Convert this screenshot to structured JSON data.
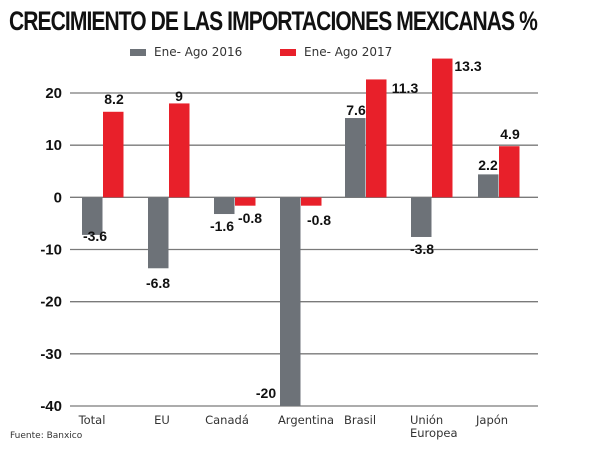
{
  "chart_data": {
    "type": "bar",
    "title": "CRECIMIENTO DE LAS IMPORTACIONES MEXICANAS %",
    "xlabel": "",
    "ylabel": "",
    "ylim": [
      -40,
      20
    ],
    "yticks": [
      20,
      10,
      0,
      -10,
      -20,
      -30,
      -40
    ],
    "grid": true,
    "legend_position": "top",
    "categories": [
      "Total",
      "EU",
      "Canadá",
      "Argentina",
      "Brasil",
      "Unión Europea",
      "Japón"
    ],
    "category_lines": [
      [
        "Total"
      ],
      [
        "EU"
      ],
      [
        "Canadá"
      ],
      [
        "Argentina"
      ],
      [
        "Brasil"
      ],
      [
        "Unión",
        "Europea"
      ],
      [
        "Japón"
      ]
    ],
    "series": [
      {
        "name": "Ene- Ago 2016",
        "color": "#6d7278",
        "values": [
          -3.6,
          -6.8,
          -1.6,
          -20,
          7.6,
          -3.8,
          2.2
        ]
      },
      {
        "name": "Ene- Ago 2017",
        "color": "#e8202a",
        "values": [
          8.2,
          9,
          -0.8,
          -0.8,
          11.3,
          13.3,
          4.9
        ]
      }
    ],
    "visual_scale_note": "bars drawn at twice labeled values relative to axis"
  },
  "source": "Fuente: Banxico"
}
